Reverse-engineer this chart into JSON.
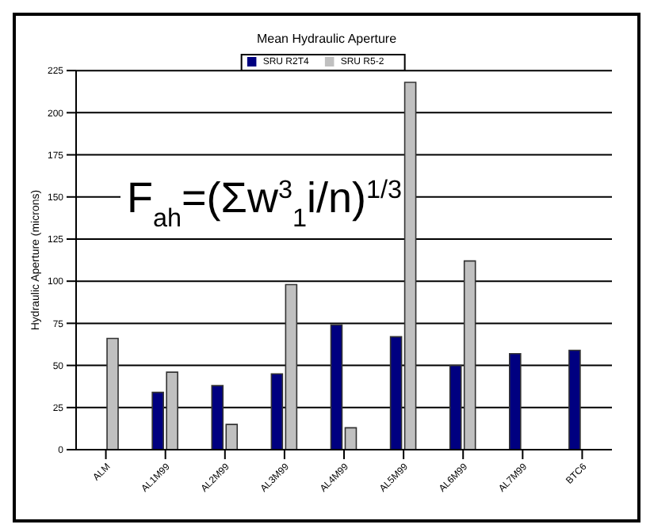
{
  "chart_data": {
    "type": "bar",
    "title": "Mean Hydraulic Aperture",
    "ylabel": "Hydraulic Aperture (microns)",
    "categories": [
      "ALM",
      "AL1M99",
      "AL2M99",
      "AL3M99",
      "AL4M99",
      "AL5M99",
      "AL6M99",
      "AL7M99",
      "BTC6"
    ],
    "series": [
      {
        "name": "SRU R2T4",
        "color": "#000080",
        "values": [
          null,
          34,
          38,
          45,
          74,
          67,
          50,
          57,
          59
        ]
      },
      {
        "name": "SRU R5-2",
        "color": "#c0c0c0",
        "values": [
          66,
          46,
          15,
          98,
          13,
          218,
          112,
          null,
          null
        ]
      }
    ],
    "ylim": [
      0,
      225
    ],
    "yticks": [
      0,
      25,
      50,
      75,
      100,
      125,
      150,
      175,
      200,
      225
    ],
    "grid": "y",
    "legend": "top",
    "annotations": [
      "F$_{ah}$=(Σw$^{3}$$_{1}$i/n)$^{1/3}$"
    ]
  }
}
